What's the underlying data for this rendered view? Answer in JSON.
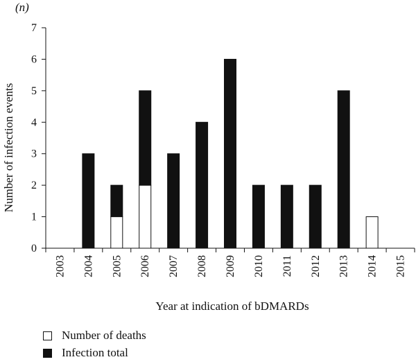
{
  "chart_data": {
    "type": "bar",
    "stacked": true,
    "unit_label": "(n)",
    "xlabel": "Year at indication of bDMARDs",
    "ylabel": "Number of infection events",
    "ylim": [
      0,
      7
    ],
    "yticks": [
      "0",
      "1",
      "2",
      "3",
      "4",
      "5",
      "6",
      "7"
    ],
    "categories": [
      "2003",
      "2004",
      "2005",
      "2006",
      "2007",
      "2008",
      "2009",
      "2010",
      "2011",
      "2012",
      "2013",
      "2014",
      "2015"
    ],
    "series": [
      {
        "name": "Number of deaths",
        "color": "#ffffff",
        "values": [
          0,
          0,
          1,
          2,
          0,
          0,
          0,
          0,
          0,
          0,
          0,
          1,
          0
        ]
      },
      {
        "name": "Infection total",
        "color": "#111111",
        "values": [
          0,
          3,
          1,
          3,
          3,
          4,
          6,
          2,
          2,
          2,
          5,
          0,
          0
        ]
      }
    ],
    "grid": false,
    "legend_position": "bottom-left"
  }
}
